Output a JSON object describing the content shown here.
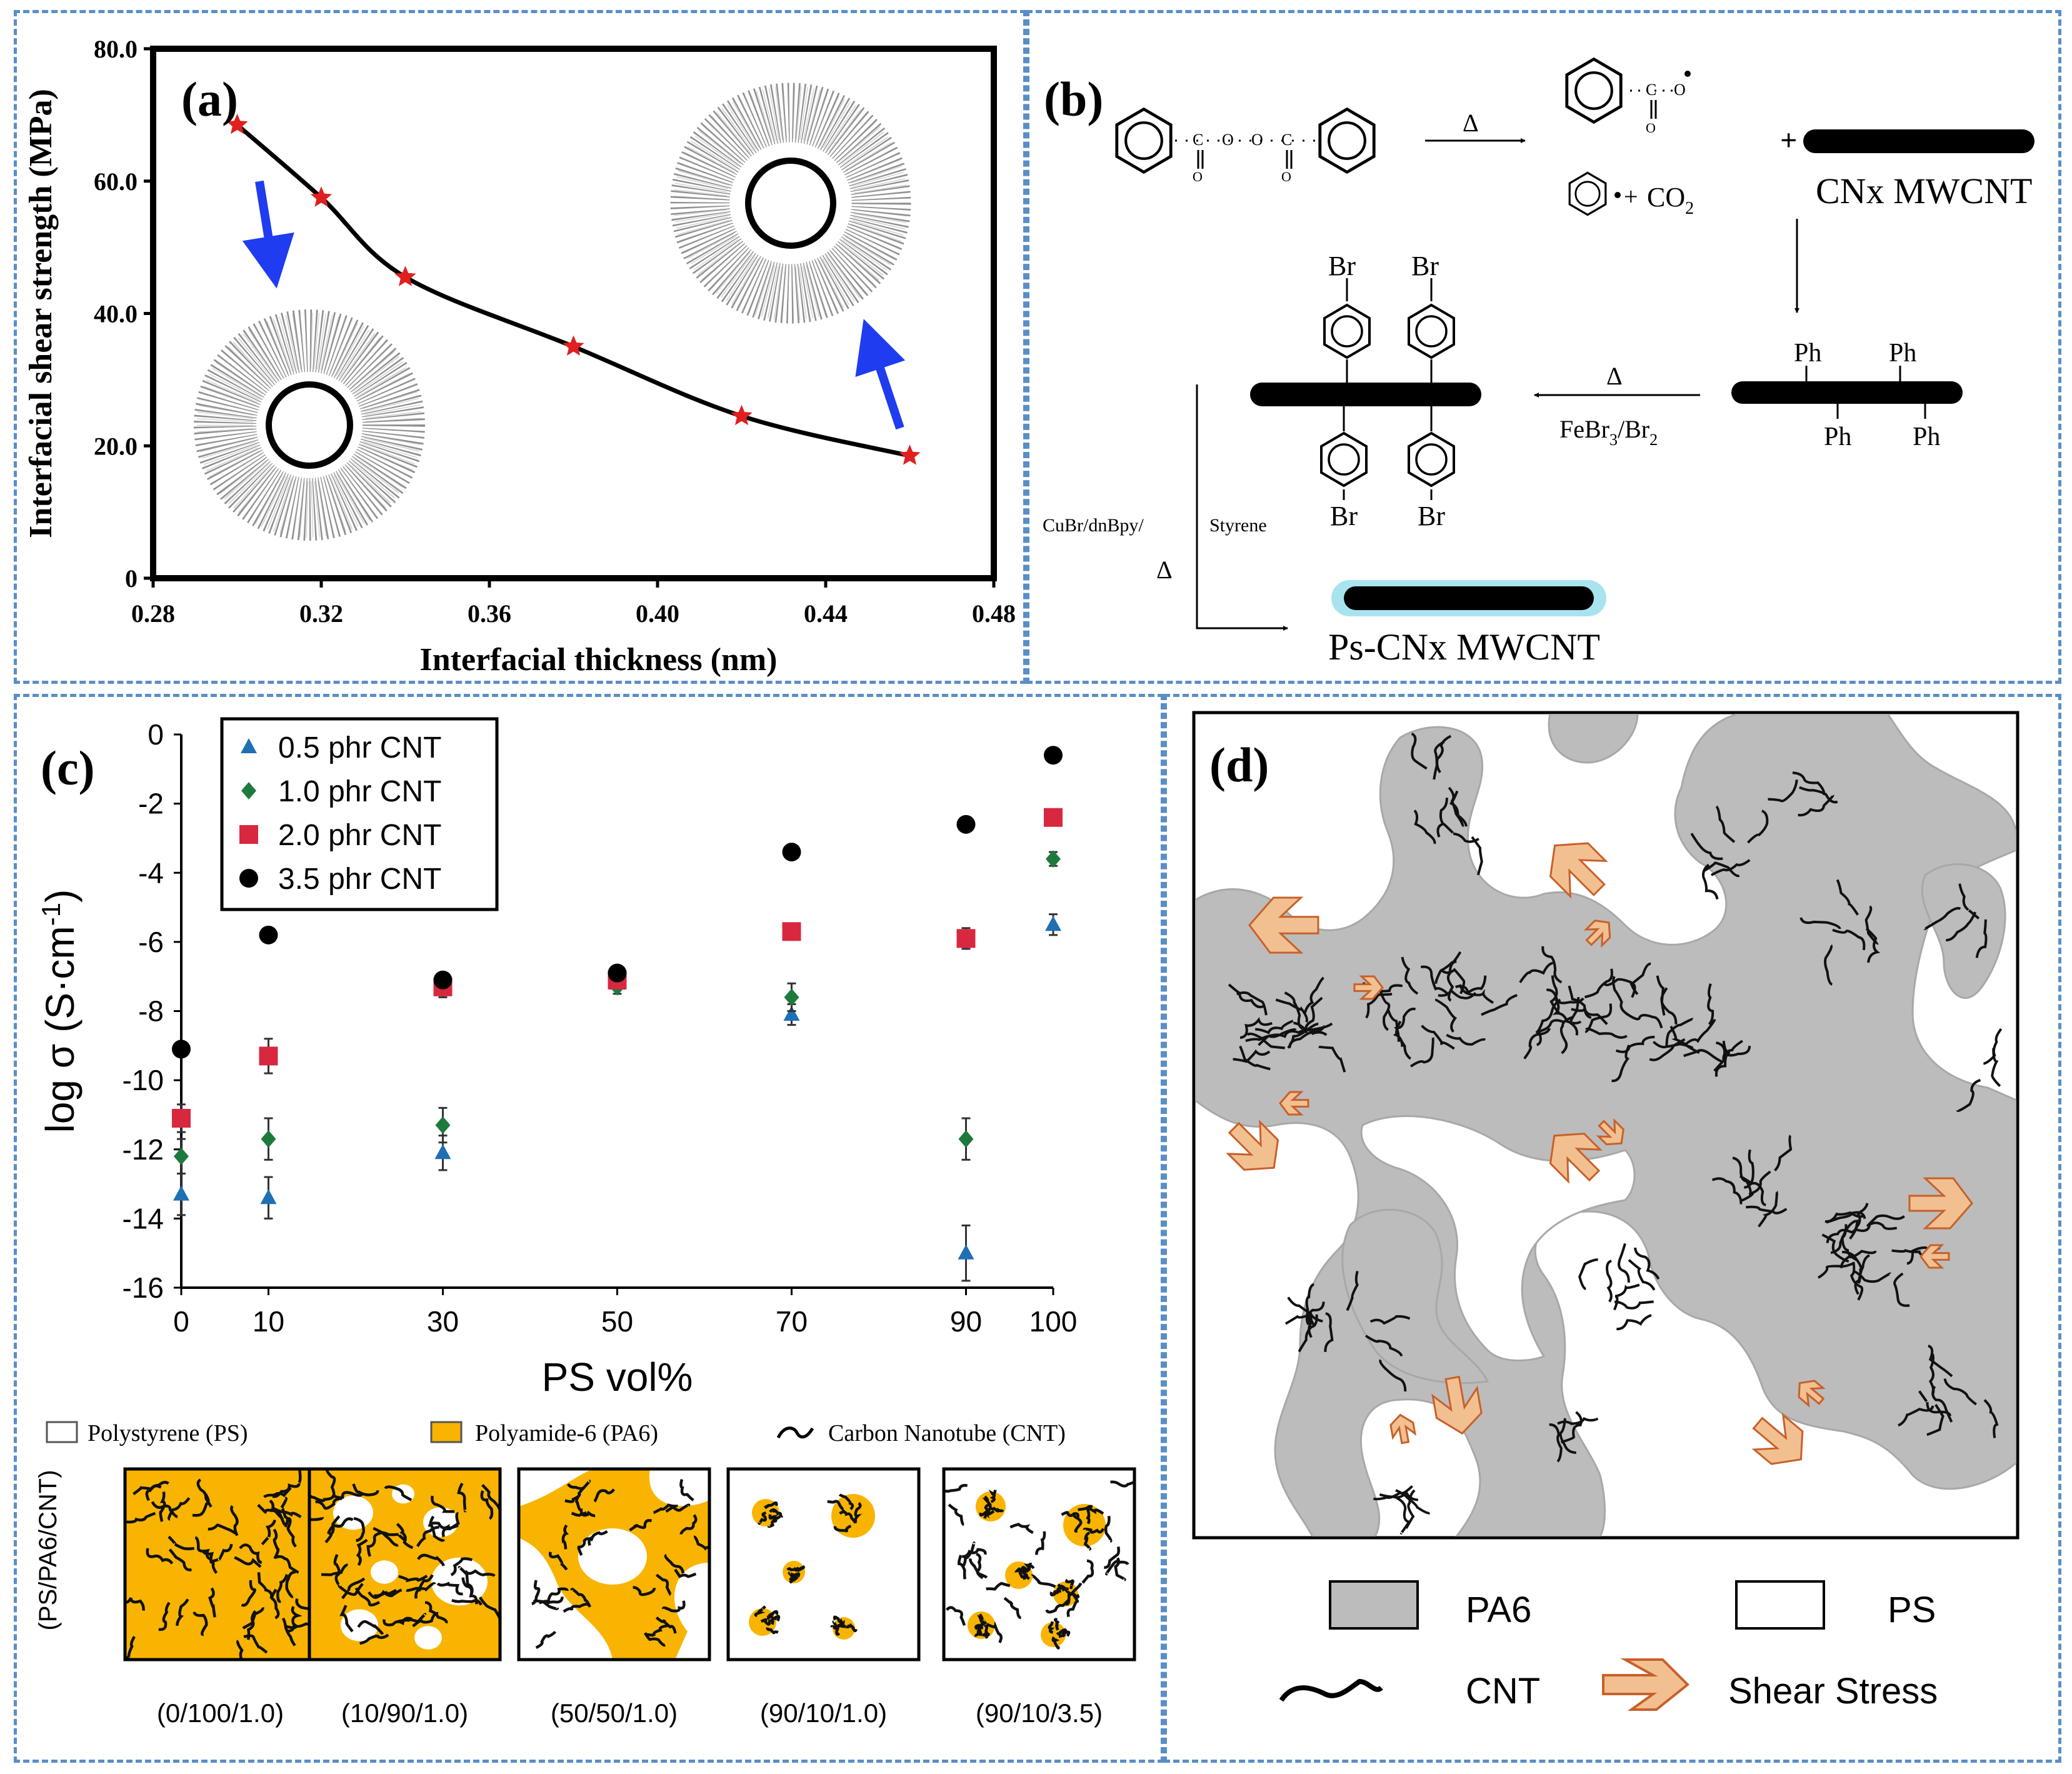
{
  "colors": {
    "border": "#5a8ec7",
    "red": "#e02020",
    "blue": "#1f6fb5",
    "green": "#1e7a3c",
    "crimson": "#d8283f",
    "black": "#000000",
    "arrow_blue": "#1f3cf0",
    "pa6_gray": "#bcbcbc",
    "orange": "#f2c090",
    "orange_edge": "#c8602a",
    "pa6_yellow": "#f8b400",
    "cyan": "#a8e4f0"
  },
  "panels": {
    "a": "(a)",
    "b": "(b)",
    "c": "(c)",
    "d": "(d)"
  },
  "chart_a": {
    "chart_data": {
      "type": "line",
      "title": "",
      "xlabel": "Interfacial thickness (nm)",
      "ylabel": "Interfacial shear strength (MPa)",
      "xlim": [
        0.28,
        0.48
      ],
      "ylim": [
        0,
        80
      ],
      "xticks": [
        "0.28",
        "0.32",
        "0.36",
        "0.40",
        "0.44",
        "0.48"
      ],
      "yticks": [
        "0",
        "20.0",
        "40.0",
        "60.0",
        "80.0"
      ],
      "x": [
        0.3,
        0.32,
        0.34,
        0.38,
        0.42,
        0.46
      ],
      "y": [
        68.5,
        57.5,
        45.5,
        35.0,
        24.5,
        18.5
      ]
    }
  },
  "scheme_b": {
    "delta": "Δ",
    "co2": "CO",
    "co2_sub": "2",
    "cnx": "CNx MWCNT",
    "plus": "+",
    "ph": "Ph",
    "br": "Br",
    "febr": "FeBr",
    "febr_sub1": "3",
    "febr_slash": "/Br",
    "febr_sub2": "2",
    "cubr": "CuBr/dnBpy/",
    "styrene": "Styrene",
    "product": "Ps-CNx MWCNT"
  },
  "chart_c": {
    "chart_data": {
      "type": "scatter",
      "xlabel": "PS vol%",
      "ylabel": "log σ (S·cm⁻¹)",
      "ylabel_base": "log σ (S·cm",
      "ylabel_sup": "-1",
      "ylabel_close": ")",
      "xlim": [
        0,
        100
      ],
      "ylim": [
        -16,
        0
      ],
      "xticks": [
        "0",
        "10",
        "30",
        "50",
        "70",
        "90",
        "100"
      ],
      "yticks": [
        "0",
        "-2",
        "-4",
        "-6",
        "-8",
        "-10",
        "-12",
        "-14",
        "-16"
      ],
      "x": [
        0,
        10,
        30,
        50,
        70,
        90,
        100
      ],
      "series": [
        {
          "name": "0.5 phr CNT",
          "marker": "triangle",
          "values": [
            -13.3,
            -13.4,
            -12.1,
            -7.2,
            -8.1,
            -15.0,
            -5.5
          ],
          "err": [
            0.6,
            0.6,
            0.5,
            0.2,
            0.3,
            0.8,
            0.3
          ]
        },
        {
          "name": "1.0 phr CNT",
          "marker": "diamond",
          "values": [
            -12.2,
            -11.7,
            -11.3,
            -7.3,
            -7.6,
            -11.7,
            -3.6
          ],
          "err": [
            0.5,
            0.6,
            0.5,
            0.2,
            0.4,
            0.6,
            0.2
          ]
        },
        {
          "name": "2.0 phr CNT",
          "marker": "square",
          "values": [
            -11.1,
            -9.3,
            -7.3,
            -7.1,
            -5.7,
            -5.9,
            -2.4
          ],
          "err": [
            0.4,
            0.5,
            0.3,
            0.2,
            0.2,
            0.3,
            0.1
          ]
        },
        {
          "name": "3.5 phr CNT",
          "marker": "circle",
          "values": [
            -9.1,
            -5.8,
            -7.1,
            -6.9,
            -3.4,
            -2.6,
            -0.6
          ],
          "err": [
            0,
            0,
            0,
            0,
            0,
            0,
            0
          ]
        }
      ]
    },
    "schematic_legend": [
      "Polystyrene (PS)",
      "Polyamide-6 (PA6)",
      "Carbon Nanotube (CNT)"
    ],
    "schematic_axis": "(PS/PA6/CNT)",
    "compositions": [
      "(0/100/1.0)",
      "(10/90/1.0)",
      "(50/50/1.0)",
      "(90/10/1.0)",
      "(90/10/3.5)"
    ]
  },
  "panel_d": {
    "legend": {
      "pa6": "PA6",
      "ps": "PS",
      "cnt": "CNT",
      "shear": "Shear Stress"
    }
  }
}
